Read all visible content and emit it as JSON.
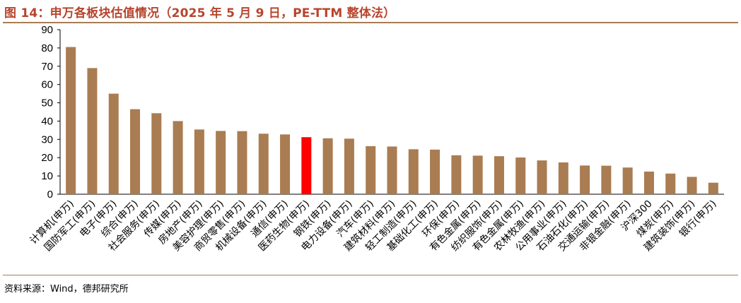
{
  "title": "图 14：申万各板块估值情况（2025 年 5 月 9 日，PE-TTM 整体法）",
  "source": "资料来源：Wind，德邦研究所",
  "colors": {
    "bar": "#a97c52",
    "highlight": "#ff0000",
    "title": "#b9442c",
    "rule": "#a97c52"
  },
  "chart_data": {
    "type": "bar",
    "categories": [
      "计算机(申万)",
      "国防军工(申万)",
      "电子(申万)",
      "综合(申万)",
      "社会服务(申万)",
      "传媒(申万)",
      "房地产(申万)",
      "美容护理(申万)",
      "商贸零售(申万)",
      "机械设备(申万)",
      "通信(申万)",
      "医药生物(申万)",
      "钢铁(申万)",
      "电力设备(申万)",
      "汽车(申万)",
      "建筑材料(申万)",
      "轻工制造(申万)",
      "基础化工(申万)",
      "环保(申万)",
      "有色金属(申万)",
      "纺织服饰(申万)",
      "有色金属(申万)",
      "农林牧渔(申万)",
      "公用事业(申万)",
      "石油石化(申万)",
      "交通运输(申万)",
      "非银金融(申万)",
      "沪深300",
      "煤炭(申万)",
      "建筑装饰(申万)",
      "银行(申万)"
    ],
    "values": [
      80.5,
      69.0,
      55.0,
      46.5,
      44.3,
      40.0,
      35.4,
      34.6,
      34.5,
      33.1,
      32.7,
      31.2,
      30.6,
      30.4,
      26.3,
      26.1,
      24.6,
      24.4,
      21.3,
      21.1,
      20.8,
      20.1,
      18.5,
      17.4,
      15.7,
      15.6,
      14.6,
      12.4,
      11.3,
      9.5,
      6.3
    ],
    "highlight_index": 11,
    "ylim": [
      0,
      90
    ],
    "yticks": [
      0,
      10,
      20,
      30,
      40,
      50,
      60,
      70,
      80,
      90
    ],
    "grid": false,
    "legend": "none"
  }
}
